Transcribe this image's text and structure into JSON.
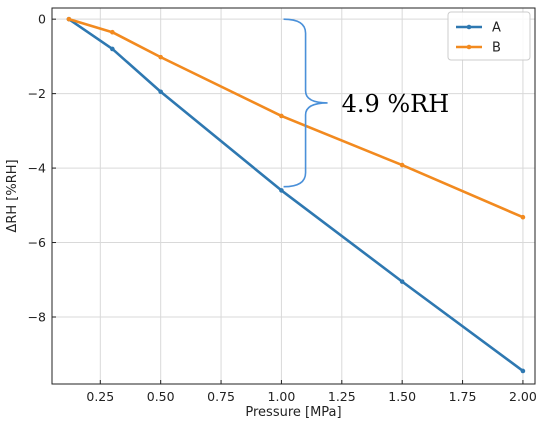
{
  "chart_data": {
    "type": "line",
    "xlabel": "Pressure [MPa]",
    "ylabel": "ΔRH [%RH]",
    "xlim": [
      0.05,
      2.05
    ],
    "ylim": [
      -9.8,
      0.3
    ],
    "xticks": [
      0.25,
      0.5,
      0.75,
      1.0,
      1.25,
      1.5,
      1.75,
      2.0
    ],
    "xtick_labels": [
      "0.25",
      "0.50",
      "0.75",
      "1.00",
      "1.25",
      "1.50",
      "1.75",
      "2.00"
    ],
    "yticks": [
      0,
      -2,
      -4,
      -6,
      -8
    ],
    "ytick_labels": [
      "0",
      "−2",
      "−4",
      "−6",
      "−8"
    ],
    "grid": true,
    "legend_position": "top-right",
    "series": [
      {
        "name": "A",
        "color": "#2e78b1",
        "x": [
          0.12,
          0.3,
          0.5,
          1.0,
          1.5,
          2.0
        ],
        "y": [
          0.0,
          -0.8,
          -1.95,
          -4.6,
          -7.05,
          -9.45
        ]
      },
      {
        "name": "B",
        "color": "#f28a1f",
        "x": [
          0.12,
          0.3,
          0.5,
          1.0,
          1.5,
          2.0
        ],
        "y": [
          0.0,
          -0.35,
          -1.02,
          -2.6,
          -3.92,
          -5.32
        ]
      }
    ],
    "annotation": {
      "text": "4.9 %RH",
      "brace_x": 1.1,
      "brace_y_top": 0.0,
      "brace_y_bottom": -4.5,
      "brace_color": "#4a90d9"
    }
  }
}
